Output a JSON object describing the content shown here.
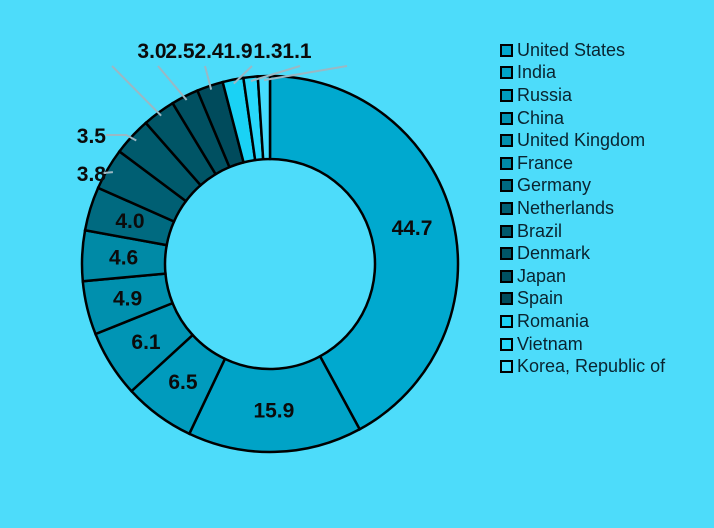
{
  "chart_data": {
    "type": "pie",
    "subtype": "donut",
    "title": "",
    "legend_position": "right",
    "categories": [
      "United States",
      "India",
      "Russia",
      "China",
      "United Kingdom",
      "France",
      "Germany",
      "Netherlands",
      "Brazil",
      "Denmark",
      "Japan",
      "Spain",
      "Romania",
      "Vietnam",
      "Korea, Republic of"
    ],
    "values": [
      44.7,
      15.9,
      6.5,
      6.1,
      4.9,
      4.6,
      4.0,
      3.8,
      3.5,
      3.0,
      2.5,
      2.4,
      1.9,
      1.3,
      1.1
    ],
    "labels": [
      "44.7",
      "15.9",
      "6.5",
      "6.1",
      "4.9",
      "4.6",
      "4.0",
      "3.8",
      "3.5",
      "3.0",
      "2.5",
      "2.4",
      "1.9",
      "1.3",
      "1.1"
    ],
    "colors": [
      "#00a9cf",
      "#00a3c7",
      "#009bbd",
      "#0095b5",
      "#0090ae",
      "#008aa6",
      "#006a80",
      "#005f73",
      "#005a6c",
      "#005566",
      "#005061",
      "#004b5c",
      "#1ad2f5",
      "#28d8fb",
      "#46dcfd"
    ]
  }
}
